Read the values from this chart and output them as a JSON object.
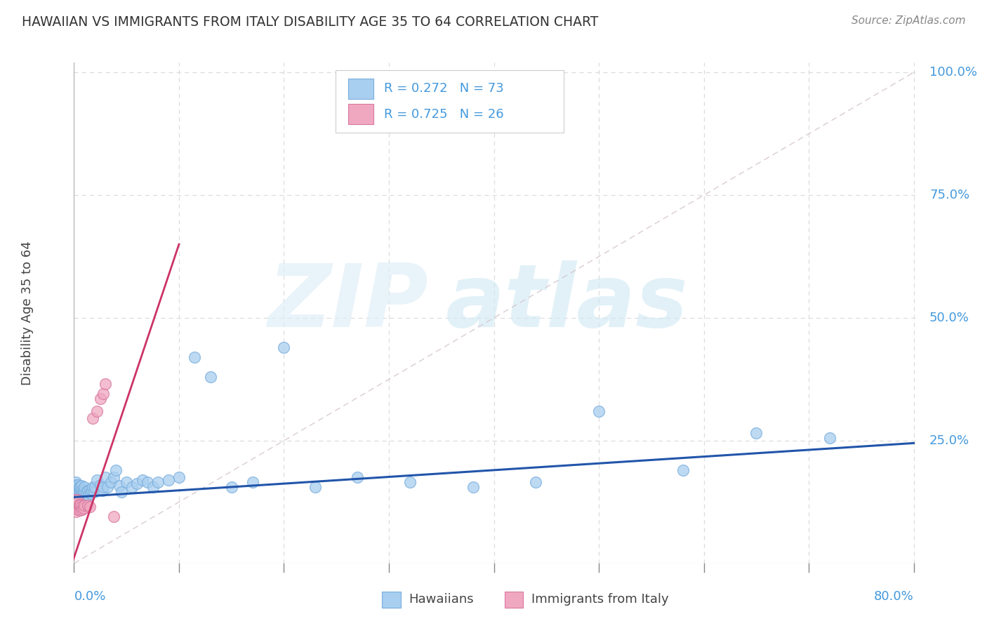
{
  "title": "HAWAIIAN VS IMMIGRANTS FROM ITALY DISABILITY AGE 35 TO 64 CORRELATION CHART",
  "source": "Source: ZipAtlas.com",
  "ylabel": "Disability Age 35 to 64",
  "hawaiians_R": 0.272,
  "hawaiians_N": 73,
  "italy_R": 0.725,
  "italy_N": 26,
  "hawaiians_color": "#A8CEF0",
  "hawaiians_edge": "#7AAEDD",
  "italy_color": "#F0A8C0",
  "italy_edge": "#D878A0",
  "hawaii_line_color": "#2255AA",
  "italy_line_color": "#CC3366",
  "ref_line_color": "#CCCCCC",
  "grid_color": "#DDDDDD",
  "blue_text_color": "#4499DD",
  "pink_text_color": "#CC3366",
  "xmin": 0.0,
  "xmax": 0.8,
  "ymin": 0.0,
  "ymax": 1.0,
  "hawaii_trend": [
    0.0,
    0.135,
    0.8,
    0.245
  ],
  "italy_trend": [
    -0.005,
    -0.02,
    0.1,
    0.65
  ],
  "ref_line": [
    0.0,
    0.0,
    0.8,
    1.0
  ],
  "hawaii_x": [
    0.001,
    0.001,
    0.001,
    0.002,
    0.002,
    0.002,
    0.003,
    0.003,
    0.003,
    0.003,
    0.004,
    0.004,
    0.004,
    0.005,
    0.005,
    0.005,
    0.006,
    0.006,
    0.006,
    0.007,
    0.007,
    0.007,
    0.008,
    0.008,
    0.009,
    0.009,
    0.01,
    0.01,
    0.01,
    0.011,
    0.012,
    0.013,
    0.014,
    0.015,
    0.016,
    0.017,
    0.018,
    0.019,
    0.02,
    0.022,
    0.025,
    0.027,
    0.028,
    0.03,
    0.032,
    0.035,
    0.038,
    0.04,
    0.043,
    0.045,
    0.05,
    0.055,
    0.06,
    0.065,
    0.07,
    0.075,
    0.08,
    0.09,
    0.1,
    0.115,
    0.13,
    0.15,
    0.17,
    0.2,
    0.23,
    0.27,
    0.32,
    0.38,
    0.44,
    0.5,
    0.58,
    0.65,
    0.72
  ],
  "hawaii_y": [
    0.145,
    0.155,
    0.16,
    0.14,
    0.155,
    0.165,
    0.135,
    0.15,
    0.155,
    0.16,
    0.14,
    0.145,
    0.16,
    0.13,
    0.145,
    0.155,
    0.14,
    0.148,
    0.155,
    0.135,
    0.145,
    0.158,
    0.138,
    0.15,
    0.13,
    0.148,
    0.128,
    0.145,
    0.155,
    0.138,
    0.145,
    0.148,
    0.138,
    0.15,
    0.142,
    0.148,
    0.155,
    0.145,
    0.155,
    0.17,
    0.16,
    0.148,
    0.155,
    0.175,
    0.155,
    0.165,
    0.175,
    0.19,
    0.158,
    0.145,
    0.165,
    0.155,
    0.162,
    0.17,
    0.165,
    0.155,
    0.165,
    0.17,
    0.175,
    0.42,
    0.38,
    0.155,
    0.165,
    0.44,
    0.155,
    0.175,
    0.165,
    0.155,
    0.165,
    0.31,
    0.19,
    0.265,
    0.255
  ],
  "italy_x": [
    0.001,
    0.001,
    0.002,
    0.002,
    0.002,
    0.003,
    0.003,
    0.003,
    0.004,
    0.004,
    0.005,
    0.005,
    0.006,
    0.006,
    0.007,
    0.008,
    0.009,
    0.01,
    0.013,
    0.015,
    0.018,
    0.022,
    0.025,
    0.028,
    0.03,
    0.038
  ],
  "italy_y": [
    0.12,
    0.13,
    0.105,
    0.115,
    0.12,
    0.115,
    0.125,
    0.13,
    0.11,
    0.125,
    0.115,
    0.12,
    0.108,
    0.118,
    0.115,
    0.11,
    0.112,
    0.118,
    0.118,
    0.115,
    0.295,
    0.31,
    0.335,
    0.345,
    0.365,
    0.095
  ]
}
